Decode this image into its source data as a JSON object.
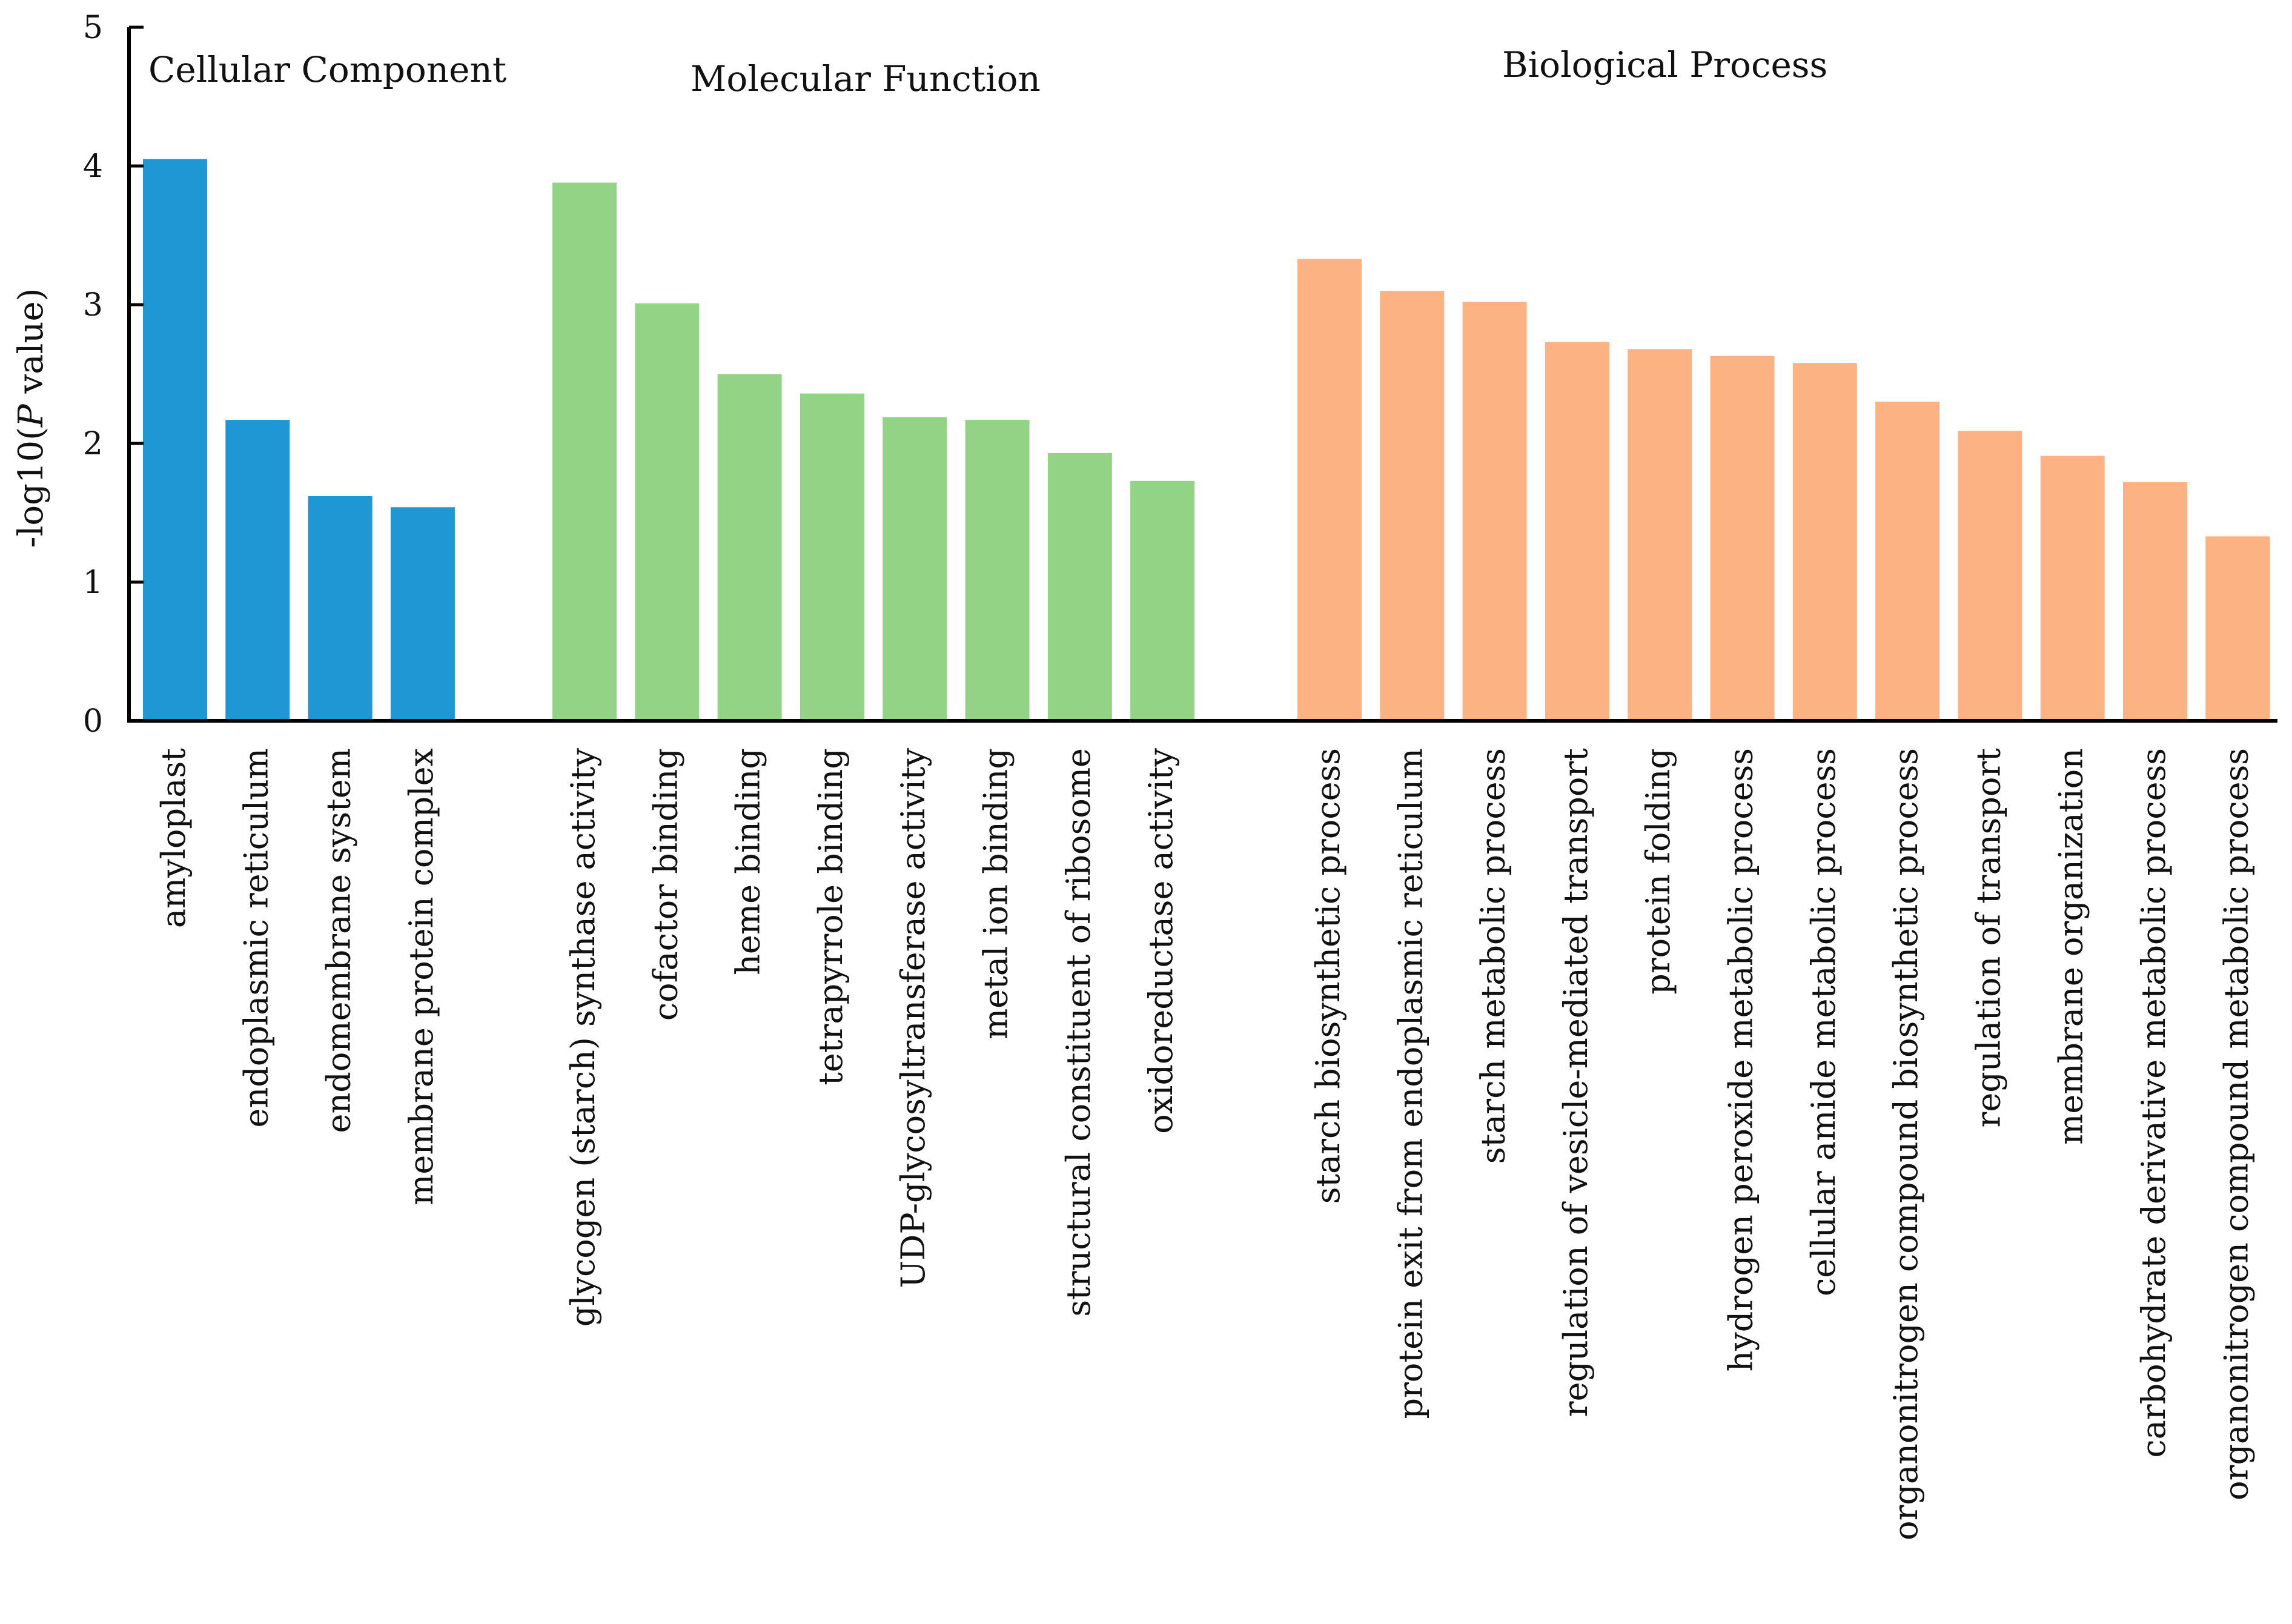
{
  "chart_data": {
    "type": "bar",
    "ylabel": {
      "prefix": "-log10(",
      "italic": "P",
      "suffix": " value)"
    },
    "ylim": [
      0,
      5
    ],
    "yticks": [
      0,
      1,
      2,
      3,
      4,
      5
    ],
    "grid": false,
    "legend": "none",
    "groups": [
      {
        "name": "Cellular Component",
        "color": "#1f97d4",
        "categories": [
          "amyloplast",
          "endoplasmic reticulum",
          "endomembrane system",
          "membrane protein complex"
        ],
        "values": [
          4.05,
          2.17,
          1.62,
          1.54
        ]
      },
      {
        "name": "Molecular Function",
        "color": "#93d386",
        "categories": [
          "glycogen (starch) synthase activity",
          "cofactor binding",
          "heme binding",
          "tetrapyrrole binding",
          "UDP-glycosyltransferase activity",
          "metal ion binding",
          "structural constituent of ribosome",
          "oxidoreductase activity"
        ],
        "values": [
          3.88,
          3.01,
          2.5,
          2.36,
          2.19,
          2.17,
          1.93,
          1.73
        ]
      },
      {
        "name": "Biological Process",
        "color": "#fdb284",
        "categories": [
          "starch biosynthetic process",
          "protein exit from endoplasmic reticulum",
          "starch metabolic process",
          "regulation of vesicle-mediated transport",
          "protein folding",
          "hydrogen peroxide metabolic process",
          "cellular amide metabolic process",
          "organonitrogen compound biosynthetic process",
          "regulation of transport",
          "membrane organization",
          "carbohydrate derivative metabolic process",
          "organonitrogen compound metabolic process"
        ],
        "values": [
          3.33,
          3.1,
          3.02,
          2.73,
          2.68,
          2.63,
          2.58,
          2.3,
          2.09,
          1.91,
          1.72,
          1.33
        ]
      }
    ]
  }
}
